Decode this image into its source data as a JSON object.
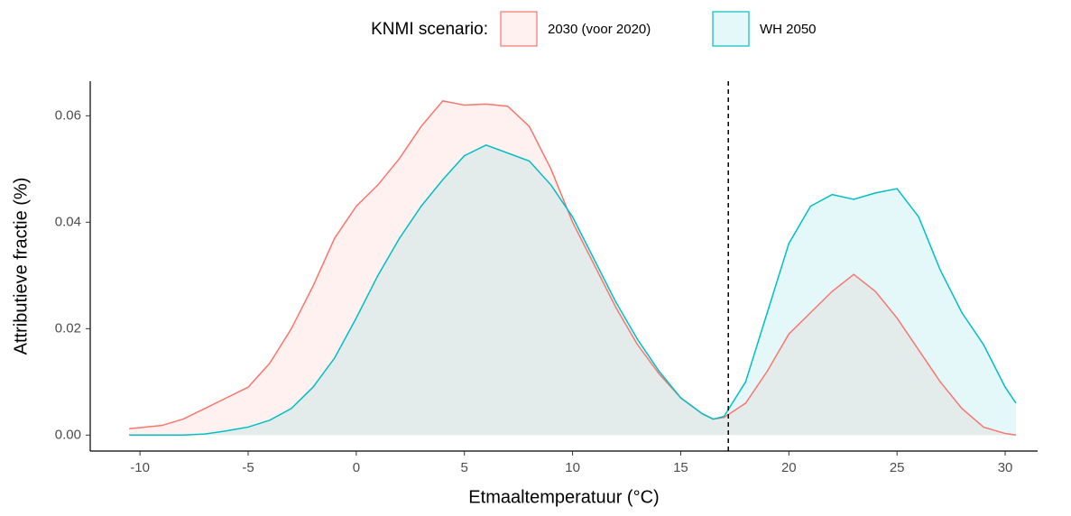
{
  "chart_data": {
    "type": "area",
    "xlabel": "Etmaaltemperatuur (°C)",
    "ylabel": "Attributieve fractie (%)",
    "legend_title": "KNMI scenario:",
    "legend": "top",
    "x": [
      -10.5,
      -9,
      -8,
      -7,
      -6,
      -5,
      -4,
      -3,
      -2,
      -1,
      0,
      1,
      2,
      3,
      4,
      5,
      6,
      7,
      8,
      9,
      10,
      11,
      12,
      13,
      14,
      15,
      16,
      16.5,
      17,
      18,
      19,
      20,
      21,
      22,
      23,
      24,
      25,
      26,
      27,
      28,
      29,
      30,
      30.5
    ],
    "series": [
      {
        "name": "2030 (voor 2020)",
        "color": "#F8766D",
        "values": [
          0.0012,
          0.0018,
          0.003,
          0.005,
          0.007,
          0.009,
          0.0135,
          0.02,
          0.028,
          0.037,
          0.043,
          0.047,
          0.052,
          0.058,
          0.0628,
          0.062,
          0.0622,
          0.0618,
          0.058,
          0.05,
          0.04,
          0.032,
          0.024,
          0.017,
          0.0115,
          0.007,
          0.004,
          0.003,
          0.0033,
          0.006,
          0.012,
          0.019,
          0.023,
          0.027,
          0.0302,
          0.027,
          0.022,
          0.016,
          0.01,
          0.005,
          0.0015,
          0.0003,
          0
        ]
      },
      {
        "name": "WH 2050",
        "color": "#00BFC4",
        "values": [
          0,
          0,
          0,
          0.0002,
          0.0008,
          0.0015,
          0.0028,
          0.005,
          0.009,
          0.0145,
          0.022,
          0.03,
          0.037,
          0.043,
          0.048,
          0.0525,
          0.0545,
          0.053,
          0.0515,
          0.047,
          0.041,
          0.033,
          0.025,
          0.018,
          0.012,
          0.007,
          0.004,
          0.003,
          0.0035,
          0.01,
          0.023,
          0.036,
          0.043,
          0.0452,
          0.0443,
          0.0455,
          0.0463,
          0.041,
          0.031,
          0.023,
          0.017,
          0.009,
          0.006
        ]
      }
    ],
    "vline": 17.2,
    "xlim": [
      -12.3,
      31.5
    ],
    "ylim": [
      -0.003,
      0.0665
    ],
    "xticks": [
      -10,
      -5,
      0,
      5,
      10,
      15,
      20,
      25,
      30
    ],
    "yticks": [
      {
        "value": 0,
        "label": "0.00"
      },
      {
        "value": 0.02,
        "label": "0.02"
      },
      {
        "value": 0.04,
        "label": "0.04"
      },
      {
        "value": 0.06,
        "label": "0.06"
      }
    ],
    "grid": false,
    "fill_opacity": 0.1
  }
}
